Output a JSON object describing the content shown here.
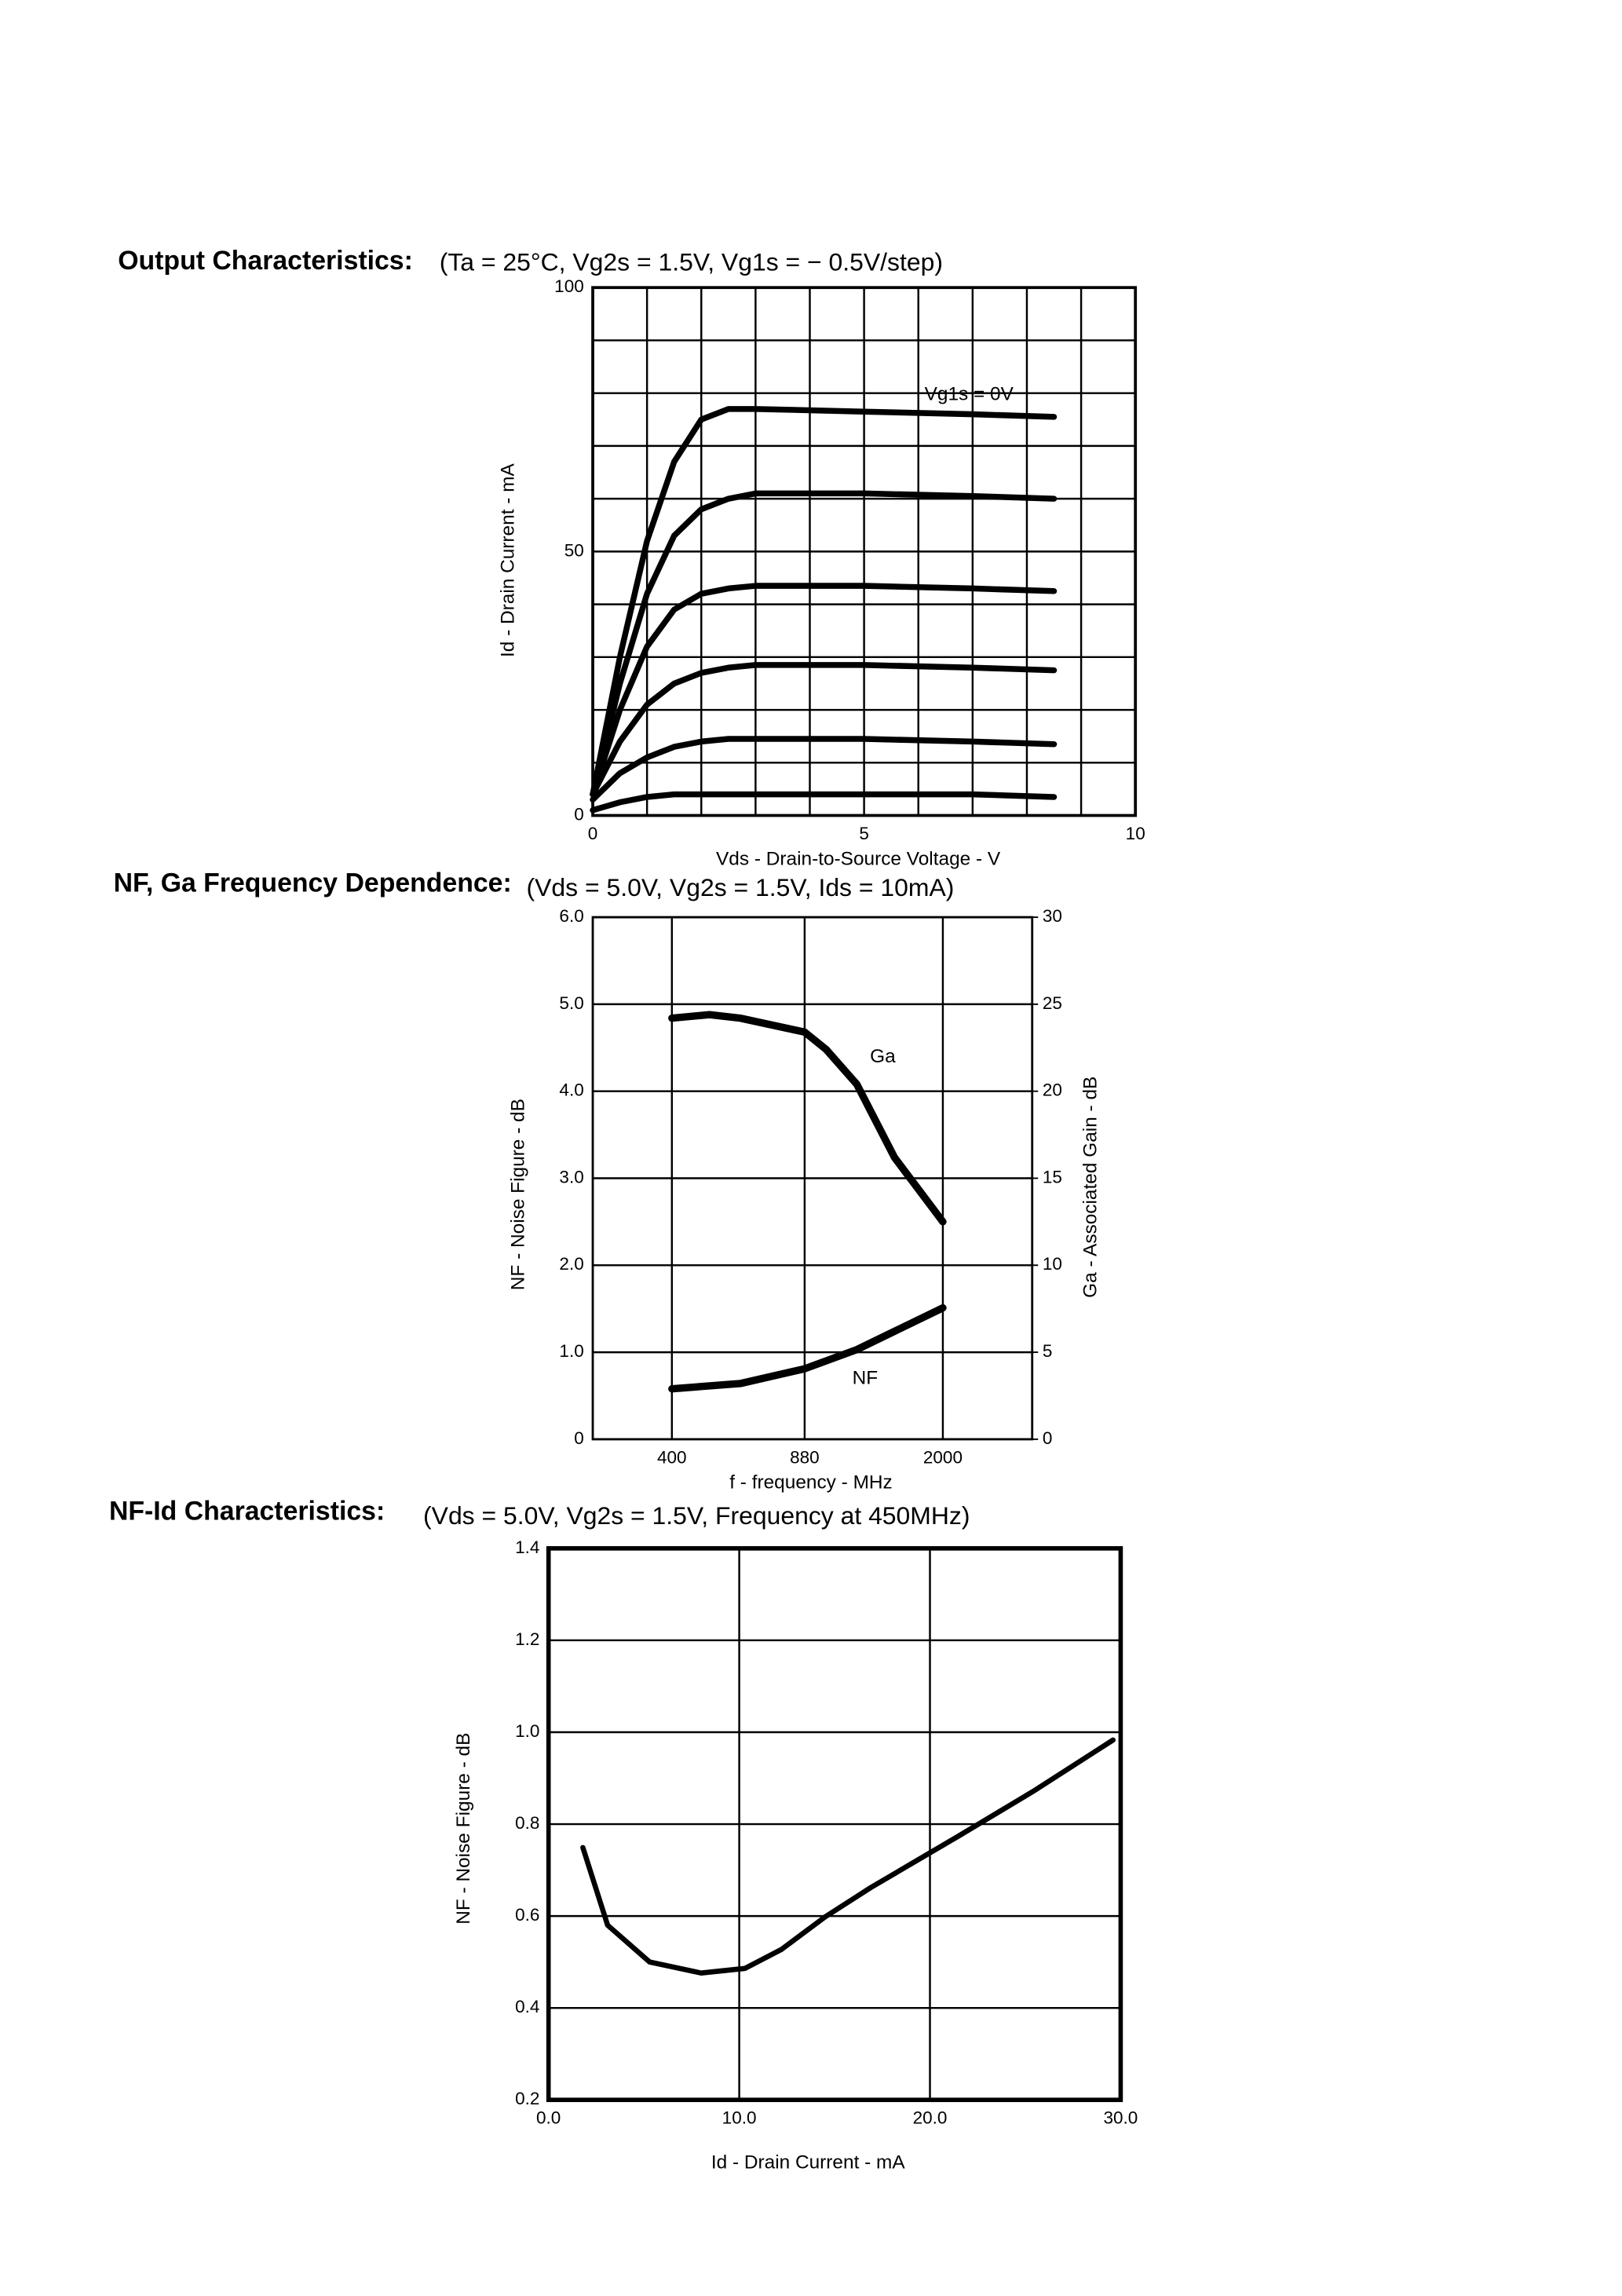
{
  "chart_data": [
    {
      "type": "line",
      "title": "Output Characteristics:",
      "subtitle": "(Ta = 25°C, Vg2s = 1.5V, Vg1s = − 0.5V/step)",
      "xlabel": "Vds - Drain-to-Source Voltage - V",
      "ylabel": "Id - Drain Current - mA",
      "xlim": [
        0,
        10
      ],
      "xticks": [
        0,
        5,
        10
      ],
      "ylim": [
        0,
        100
      ],
      "yticks": [
        0,
        50,
        100
      ],
      "x_grid": [
        0,
        1,
        2,
        3,
        4,
        5,
        6,
        7,
        8,
        9,
        10
      ],
      "y_grid": [
        0,
        10,
        20,
        30,
        40,
        50,
        60,
        70,
        80,
        90,
        100
      ],
      "annotations": [
        "Vg1s = 0V"
      ],
      "x": [
        0,
        0.5,
        1,
        1.5,
        2,
        2.5,
        3,
        5,
        7,
        8.5
      ],
      "series": [
        {
          "color": "#000000",
          "values": [
            4,
            30,
            52,
            67,
            75,
            77,
            77,
            76.5,
            76,
            75.5
          ]
        },
        {
          "color": "#000000",
          "values": [
            4,
            25,
            42,
            53,
            58,
            60,
            61,
            61,
            60.5,
            60
          ]
        },
        {
          "color": "#000000",
          "values": [
            4,
            20,
            32,
            39,
            42,
            43,
            43.5,
            43.5,
            43,
            42.5
          ]
        },
        {
          "color": "#000000",
          "values": [
            4,
            14,
            21,
            25,
            27,
            28,
            28.5,
            28.5,
            28,
            27.5
          ]
        },
        {
          "color": "#000000",
          "values": [
            3,
            8,
            11,
            13,
            14,
            14.5,
            14.5,
            14.5,
            14,
            13.5
          ]
        },
        {
          "color": "#000000",
          "values": [
            1,
            2.5,
            3.5,
            4,
            4,
            4,
            4,
            4,
            4,
            3.5
          ]
        }
      ]
    },
    {
      "type": "line",
      "title": "NF, Ga Frequency Dependence:",
      "subtitle": "(Vds = 5.0V, Vg2s = 1.5V, Ids = 10mA)",
      "xlabel": "f - frequency - MHz",
      "ylabel": "NF - Noise Figure - dB",
      "y2label": "Ga - Associated Gain - dB",
      "xscale": "log",
      "xlim": [
        250,
        3400
      ],
      "xticks": [
        400,
        880,
        2000
      ],
      "ylim": [
        0,
        6
      ],
      "yticks": [
        0,
        {
          "value": 1,
          "label": "1.0"
        },
        {
          "value": 2,
          "label": "2.0"
        },
        {
          "value": 3,
          "label": "3.0"
        },
        {
          "value": 4,
          "label": "4.0"
        },
        {
          "value": 5,
          "label": "5.0"
        },
        {
          "value": 6,
          "label": "6.0"
        }
      ],
      "y2lim": [
        0,
        30
      ],
      "y2ticks": [
        0,
        5,
        10,
        15,
        20,
        25,
        30
      ],
      "annotations": [
        "Ga",
        "NF"
      ],
      "series": [
        {
          "name": "Ga",
          "axis": "y2",
          "color": "#000000",
          "x": [
            400,
            500,
            600,
            880,
            1000,
            1200,
            1500,
            2000
          ],
          "values": [
            24.2,
            24.4,
            24.2,
            23.4,
            22.4,
            20.4,
            16.2,
            12.5
          ]
        },
        {
          "name": "NF",
          "color": "#000000",
          "x": [
            400,
            600,
            880,
            1200,
            1500,
            2000
          ],
          "values": [
            0.58,
            0.64,
            0.81,
            1.03,
            1.24,
            1.51
          ]
        }
      ]
    },
    {
      "type": "line",
      "title": "NF-Id Characteristics:",
      "subtitle": "(Vds = 5.0V, Vg2s = 1.5V, Frequency at 450MHz)",
      "xlabel": "Id - Drain Current - mA",
      "ylabel": "NF - Noise Figure - dB",
      "xlim": [
        0,
        30
      ],
      "xticks": [
        {
          "value": 0,
          "label": "0.0"
        },
        {
          "value": 10,
          "label": "10.0"
        },
        {
          "value": 20,
          "label": "20.0"
        },
        {
          "value": 30,
          "label": "30.0"
        }
      ],
      "ylim": [
        0.2,
        1.4
      ],
      "yticks": [
        0.2,
        0.4,
        0.6,
        0.8,
        {
          "value": 1,
          "label": "1.0"
        },
        1.2,
        1.4
      ],
      "x": [
        1.8,
        3.1,
        5.3,
        8,
        10.3,
        12.2,
        14.5,
        16.9,
        21.5,
        25.4,
        29.6
      ],
      "series": [
        {
          "color": "#000000",
          "values": [
            0.749,
            0.58,
            0.5,
            0.476,
            0.486,
            0.527,
            0.598,
            0.662,
            0.774,
            0.871,
            0.983
          ]
        }
      ]
    }
  ]
}
